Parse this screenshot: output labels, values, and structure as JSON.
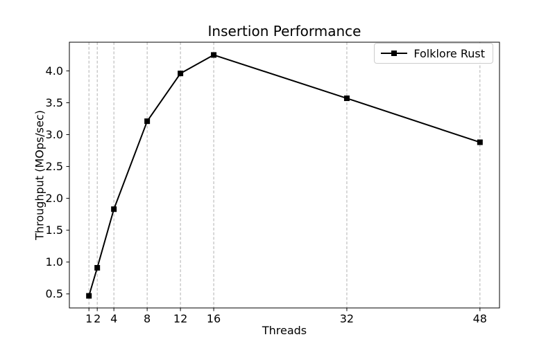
{
  "figure": {
    "background": "#ffffff"
  },
  "chart_data": {
    "type": "line",
    "title": "Insertion Performance",
    "xlabel": "Threads",
    "ylabel": "Throughput (MOps/sec)",
    "x": [
      1,
      2,
      4,
      8,
      12,
      16,
      32,
      48
    ],
    "series": [
      {
        "name": "Folklore Rust",
        "values": [
          0.47,
          0.91,
          1.83,
          3.21,
          3.96,
          4.25,
          3.57,
          2.88
        ],
        "color": "#000000",
        "marker": "square",
        "marker_size": 8,
        "line_width": 2
      }
    ],
    "xticks": [
      1,
      2,
      4,
      8,
      12,
      16,
      32,
      48
    ],
    "yticks": [
      0.5,
      1.0,
      1.5,
      2.0,
      2.5,
      3.0,
      3.5,
      4.0
    ],
    "xlim": [
      -1.35,
      50.35
    ],
    "ylim": [
      0.28,
      4.45
    ],
    "grid": {
      "axis": "x",
      "style": "dashed",
      "color": "#b0b0b0"
    },
    "axes": {
      "frame_color": "#000000",
      "tick_color": "#000000",
      "tick_label_color": "#000000"
    },
    "legend": {
      "position": "upper right",
      "entries": [
        "Folklore Rust"
      ]
    }
  }
}
